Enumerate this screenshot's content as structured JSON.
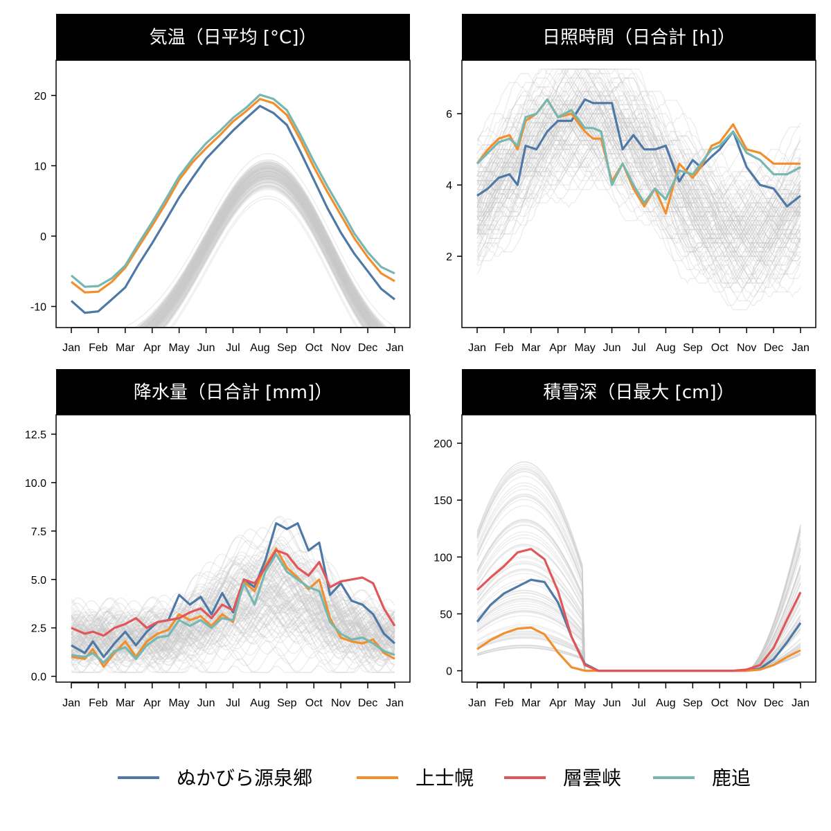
{
  "chart_data": [
    {
      "type": "line",
      "title": "気温（日平均 [°C]）",
      "ylim": [
        -13,
        25
      ],
      "yticks": [
        -10,
        0,
        10,
        20
      ],
      "ytick_labels": [
        "-10",
        "0",
        "10",
        "20"
      ],
      "x_ticks": [
        "Jan",
        "Feb",
        "Mar",
        "Apr",
        "May",
        "Jun",
        "Jul",
        "Aug",
        "Sep",
        "Oct",
        "Nov",
        "Dec",
        "Jan"
      ],
      "background_series": {
        "count": 110,
        "color": "#c8c8c8"
      },
      "series": [
        {
          "name": "ぬかびら源泉郷",
          "color": "#4e79a7",
          "x": [
            0,
            0.5,
            1,
            1.5,
            2,
            2.5,
            3,
            3.5,
            4,
            4.5,
            5,
            5.5,
            6,
            6.5,
            7,
            7.5,
            8,
            8.5,
            9,
            9.5,
            10,
            10.5,
            11,
            11.5,
            12
          ],
          "values": [
            -9.2,
            -10.9,
            -10.7,
            -9.0,
            -7.3,
            -4.0,
            -1.0,
            2.2,
            5.5,
            8.3,
            11.0,
            13.0,
            15.0,
            16.8,
            18.5,
            17.5,
            15.8,
            12.0,
            8.0,
            4.0,
            0.5,
            -2.5,
            -5.0,
            -7.5,
            -9.0
          ]
        },
        {
          "name": "上士幌",
          "color": "#f28e2b",
          "x": [
            0,
            0.5,
            1,
            1.5,
            2,
            2.5,
            3,
            3.5,
            4,
            4.5,
            5,
            5.5,
            6,
            6.5,
            7,
            7.5,
            8,
            8.5,
            9,
            9.5,
            10,
            10.5,
            11,
            11.5,
            12
          ],
          "values": [
            -6.5,
            -8.0,
            -7.9,
            -6.5,
            -4.5,
            -1.5,
            1.5,
            4.6,
            8.0,
            10.5,
            12.5,
            14.3,
            16.3,
            17.8,
            19.5,
            18.9,
            17.2,
            13.7,
            9.8,
            6.3,
            3.0,
            -0.3,
            -3.0,
            -5.3,
            -6.4
          ]
        },
        {
          "name": "鹿追",
          "color": "#76b7b2",
          "x": [
            0,
            0.5,
            1,
            1.5,
            2,
            2.5,
            3,
            3.5,
            4,
            4.5,
            5,
            5.5,
            6,
            6.5,
            7,
            7.5,
            8,
            8.5,
            9,
            9.5,
            10,
            10.5,
            11,
            11.5,
            12
          ],
          "values": [
            -5.6,
            -7.2,
            -7.1,
            -6.0,
            -4.2,
            -1.0,
            2.0,
            5.2,
            8.5,
            11.0,
            13.2,
            14.9,
            16.8,
            18.3,
            20.1,
            19.5,
            17.9,
            14.4,
            10.6,
            7.1,
            3.8,
            0.4,
            -2.3,
            -4.4,
            -5.3
          ]
        }
      ]
    },
    {
      "type": "line",
      "title": "日照時間（日合計 [h]）",
      "ylim": [
        0,
        7.5
      ],
      "yticks": [
        2,
        4,
        6
      ],
      "ytick_labels": [
        "2",
        "4",
        "6"
      ],
      "x_ticks": [
        "Jan",
        "Feb",
        "Mar",
        "Apr",
        "May",
        "Jun",
        "Jul",
        "Aug",
        "Sep",
        "Oct",
        "Nov",
        "Dec",
        "Jan"
      ],
      "background_series": {
        "count": 110,
        "color": "#c8c8c8"
      },
      "series": [
        {
          "name": "ぬかびら源泉郷",
          "color": "#4e79a7",
          "x": [
            0,
            0.4,
            0.8,
            1.2,
            1.5,
            1.8,
            2.2,
            2.6,
            3.0,
            3.5,
            4.0,
            4.3,
            4.6,
            5.0,
            5.4,
            5.8,
            6.2,
            6.6,
            7.0,
            7.5,
            8.0,
            8.3,
            8.7,
            9.0,
            9.5,
            10.0,
            10.5,
            11.0,
            11.5,
            12
          ],
          "values": [
            3.7,
            3.9,
            4.2,
            4.3,
            4.0,
            5.1,
            5.0,
            5.5,
            5.8,
            5.8,
            6.4,
            6.3,
            6.3,
            6.3,
            5.0,
            5.4,
            5.0,
            5.0,
            5.1,
            4.1,
            4.7,
            4.5,
            4.8,
            5.0,
            5.5,
            4.5,
            4.0,
            3.9,
            3.4,
            3.7
          ]
        },
        {
          "name": "上士幌",
          "color": "#f28e2b",
          "x": [
            0,
            0.4,
            0.8,
            1.2,
            1.5,
            1.8,
            2.2,
            2.6,
            3.0,
            3.5,
            4.0,
            4.3,
            4.6,
            5.0,
            5.4,
            5.8,
            6.2,
            6.6,
            7.0,
            7.5,
            8.0,
            8.3,
            8.7,
            9.0,
            9.5,
            10.0,
            10.5,
            11.0,
            11.5,
            12
          ],
          "values": [
            4.6,
            5.0,
            5.3,
            5.4,
            5.0,
            5.8,
            6.0,
            6.4,
            5.9,
            6.0,
            5.5,
            5.3,
            5.3,
            4.1,
            4.6,
            3.9,
            3.4,
            3.9,
            3.2,
            4.6,
            4.2,
            4.5,
            5.1,
            5.2,
            5.7,
            5.0,
            4.9,
            4.6,
            4.6,
            4.6
          ]
        },
        {
          "name": "鹿追",
          "color": "#76b7b2",
          "x": [
            0,
            0.4,
            0.8,
            1.2,
            1.5,
            1.8,
            2.2,
            2.6,
            3.0,
            3.5,
            4.0,
            4.3,
            4.6,
            5.0,
            5.4,
            5.8,
            6.2,
            6.6,
            7.0,
            7.5,
            8.0,
            8.3,
            8.7,
            9.0,
            9.5,
            10.0,
            10.5,
            11.0,
            11.5,
            12
          ],
          "values": [
            4.6,
            4.9,
            5.2,
            5.3,
            5.1,
            5.9,
            6.0,
            6.4,
            5.9,
            6.1,
            5.6,
            5.6,
            5.5,
            4.0,
            4.6,
            4.0,
            3.5,
            3.9,
            3.6,
            4.4,
            4.3,
            4.6,
            5.0,
            5.1,
            5.5,
            4.9,
            4.7,
            4.3,
            4.3,
            4.5
          ]
        }
      ]
    },
    {
      "type": "line",
      "title": "降水量（日合計 [mm]）",
      "ylim": [
        -0.3,
        13.5
      ],
      "yticks": [
        0,
        2.5,
        5,
        7.5,
        10,
        12.5
      ],
      "ytick_labels": [
        "0.0",
        "2.5",
        "5.0",
        "7.5",
        "10.0",
        "12.5"
      ],
      "x_ticks": [
        "Jan",
        "Feb",
        "Mar",
        "Apr",
        "May",
        "Jun",
        "Jul",
        "Aug",
        "Sep",
        "Oct",
        "Nov",
        "Dec",
        "Jan"
      ],
      "background_series": {
        "count": 110,
        "color": "#c8c8c8"
      },
      "series": [
        {
          "name": "ぬかびら源泉郷",
          "color": "#4e79a7",
          "x": [
            0,
            0.5,
            0.8,
            1.2,
            1.6,
            2.0,
            2.4,
            2.8,
            3.2,
            3.6,
            4.0,
            4.4,
            4.8,
            5.2,
            5.6,
            6.0,
            6.4,
            6.8,
            7.2,
            7.6,
            8.0,
            8.4,
            8.8,
            9.2,
            9.6,
            10.0,
            10.4,
            10.8,
            11.2,
            11.6,
            12
          ],
          "values": [
            1.6,
            1.2,
            1.8,
            1.0,
            1.7,
            2.3,
            1.6,
            2.3,
            2.8,
            2.9,
            4.2,
            3.7,
            4.1,
            3.2,
            4.3,
            3.3,
            5.0,
            4.6,
            6.0,
            7.9,
            7.6,
            7.9,
            6.5,
            6.9,
            4.2,
            4.8,
            3.9,
            3.7,
            3.2,
            2.2,
            1.7
          ]
        },
        {
          "name": "上士幌",
          "color": "#f28e2b",
          "x": [
            0,
            0.5,
            0.8,
            1.2,
            1.6,
            2.0,
            2.4,
            2.8,
            3.2,
            3.6,
            4.0,
            4.4,
            4.8,
            5.2,
            5.6,
            6.0,
            6.4,
            6.8,
            7.2,
            7.6,
            8.0,
            8.4,
            8.8,
            9.2,
            9.6,
            10.0,
            10.4,
            10.8,
            11.2,
            11.6,
            12
          ],
          "values": [
            1.0,
            0.9,
            1.4,
            0.5,
            1.2,
            1.8,
            1.0,
            1.8,
            2.2,
            2.4,
            3.2,
            2.9,
            3.1,
            2.6,
            3.2,
            2.8,
            4.9,
            4.4,
            5.7,
            6.6,
            5.6,
            5.1,
            4.5,
            5.0,
            3.0,
            2.0,
            1.8,
            1.7,
            1.9,
            1.2,
            0.9
          ]
        },
        {
          "name": "層雲峡",
          "color": "#e15759",
          "x": [
            0,
            0.5,
            0.8,
            1.2,
            1.6,
            2.0,
            2.4,
            2.8,
            3.2,
            3.6,
            4.0,
            4.4,
            4.8,
            5.2,
            5.6,
            6.0,
            6.4,
            6.8,
            7.2,
            7.6,
            8.0,
            8.4,
            8.8,
            9.2,
            9.6,
            10.0,
            10.4,
            10.8,
            11.2,
            11.6,
            12
          ],
          "values": [
            2.5,
            2.2,
            2.3,
            2.1,
            2.5,
            2.7,
            3.0,
            2.5,
            2.8,
            2.9,
            3.0,
            3.3,
            3.5,
            3.0,
            3.7,
            3.4,
            5.0,
            4.8,
            5.6,
            6.5,
            6.3,
            5.6,
            5.2,
            5.9,
            4.6,
            4.9,
            5.0,
            5.1,
            4.8,
            3.5,
            2.6
          ]
        },
        {
          "name": "鹿追",
          "color": "#76b7b2",
          "x": [
            0,
            0.5,
            0.8,
            1.2,
            1.6,
            2.0,
            2.4,
            2.8,
            3.2,
            3.6,
            4.0,
            4.4,
            4.8,
            5.2,
            5.6,
            6.0,
            6.4,
            6.8,
            7.2,
            7.6,
            8.0,
            8.4,
            8.8,
            9.2,
            9.6,
            10.0,
            10.4,
            10.8,
            11.2,
            11.6,
            12
          ],
          "values": [
            1.1,
            1.0,
            1.2,
            0.7,
            1.3,
            1.5,
            0.9,
            1.6,
            2.0,
            2.1,
            2.9,
            2.6,
            2.9,
            2.5,
            3.0,
            2.9,
            4.8,
            3.7,
            5.4,
            6.3,
            5.4,
            5.0,
            4.6,
            4.4,
            2.8,
            2.2,
            1.9,
            2.0,
            1.7,
            1.3,
            1.1
          ]
        }
      ]
    },
    {
      "type": "line",
      "title": "積雪深（日最大 [cm]）",
      "ylim": [
        -10,
        225
      ],
      "yticks": [
        0,
        50,
        100,
        150,
        200
      ],
      "ytick_labels": [
        "0",
        "50",
        "100",
        "150",
        "200"
      ],
      "x_ticks": [
        "Jan",
        "Feb",
        "Mar",
        "Apr",
        "May",
        "Jun",
        "Jul",
        "Aug",
        "Sep",
        "Oct",
        "Nov",
        "Dec",
        "Jan"
      ],
      "background_series": {
        "count": 80,
        "color": "#c8c8c8"
      },
      "series": [
        {
          "name": "ぬかびら源泉郷",
          "color": "#4e79a7",
          "x": [
            0,
            0.5,
            1,
            1.5,
            2,
            2.5,
            3,
            3.5,
            4,
            4.5,
            5,
            6,
            7,
            8,
            9,
            9.5,
            10,
            10.5,
            11,
            11.5,
            12
          ],
          "values": [
            43,
            58,
            68,
            74,
            80,
            78,
            60,
            30,
            6,
            0,
            0,
            0,
            0,
            0,
            0,
            0,
            0,
            2,
            10,
            25,
            42
          ]
        },
        {
          "name": "上士幌",
          "color": "#f28e2b",
          "x": [
            0,
            0.5,
            1,
            1.5,
            2,
            2.5,
            3,
            3.5,
            4,
            4.5,
            5,
            6,
            7,
            8,
            9,
            9.5,
            10,
            10.5,
            11,
            11.5,
            12
          ],
          "values": [
            19,
            27,
            33,
            37,
            38,
            32,
            16,
            3,
            0,
            0,
            0,
            0,
            0,
            0,
            0,
            0,
            0,
            1,
            5,
            12,
            18
          ]
        },
        {
          "name": "層雲峡",
          "color": "#e15759",
          "x": [
            0,
            0.5,
            1,
            1.5,
            2,
            2.5,
            3,
            3.5,
            4,
            4.5,
            5,
            6,
            7,
            8,
            9,
            9.5,
            10,
            10.5,
            11,
            11.5,
            12
          ],
          "values": [
            71,
            82,
            92,
            104,
            107,
            98,
            70,
            30,
            5,
            0,
            0,
            0,
            0,
            0,
            0,
            0,
            1,
            5,
            20,
            45,
            69
          ]
        }
      ]
    }
  ],
  "legend": {
    "position": "bottom",
    "items": [
      {
        "label": "ぬかびら源泉郷",
        "color": "#4e79a7"
      },
      {
        "label": "上士幌",
        "color": "#f28e2b"
      },
      {
        "label": "層雲峡",
        "color": "#e15759"
      },
      {
        "label": "鹿追",
        "color": "#76b7b2"
      }
    ]
  }
}
